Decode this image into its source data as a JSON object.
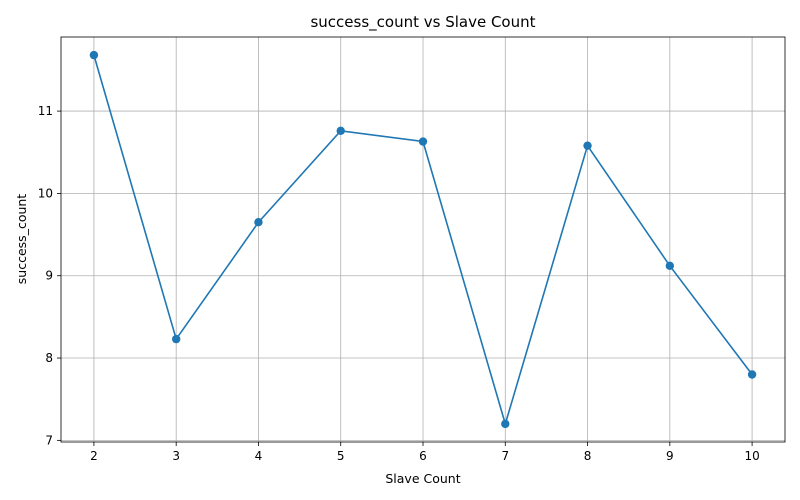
{
  "chart_data": {
    "type": "line",
    "title": "success_count vs Slave Count",
    "xlabel": "Slave Count",
    "ylabel": "success_count",
    "x": [
      2,
      3,
      4,
      5,
      6,
      7,
      8,
      9,
      10
    ],
    "series": [
      {
        "values": [
          11.68,
          8.23,
          9.65,
          10.76,
          10.63,
          7.2,
          10.58,
          9.12,
          7.8
        ],
        "color": "#1f77b4",
        "marker": "circle"
      }
    ],
    "xlim": [
      1.6,
      10.4
    ],
    "ylim": [
      6.98,
      11.9
    ],
    "xticks": [
      "2",
      "3",
      "4",
      "5",
      "6",
      "7",
      "8",
      "9",
      "10"
    ],
    "yticks": [
      "7",
      "8",
      "9",
      "10",
      "11"
    ],
    "grid": true,
    "legend": "none"
  }
}
